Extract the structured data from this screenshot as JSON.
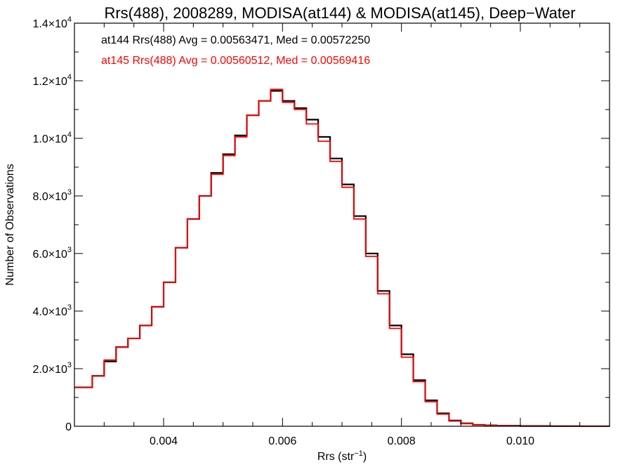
{
  "chart_data": {
    "type": "line",
    "title": "Rrs(488), 2008289, MODISA(at144) & MODISA(at145), Deep−Water",
    "xlabel_base": "Rrs (str",
    "xlabel_exp": "−1",
    "xlabel_close": ")",
    "ylabel": "Number of Observations",
    "xlim": [
      0.0025,
      0.0115
    ],
    "ylim": [
      0,
      14000
    ],
    "x_ticks": [
      {
        "value": 0.004,
        "label": "0.004"
      },
      {
        "value": 0.006,
        "label": "0.006"
      },
      {
        "value": 0.008,
        "label": "0.008"
      },
      {
        "value": 0.01,
        "label": "0.010"
      }
    ],
    "y_ticks": [
      {
        "value": 0,
        "mant": "0",
        "exp": ""
      },
      {
        "value": 2000,
        "mant": "2.0×10",
        "exp": "3"
      },
      {
        "value": 4000,
        "mant": "4.0×10",
        "exp": "3"
      },
      {
        "value": 6000,
        "mant": "6.0×10",
        "exp": "3"
      },
      {
        "value": 8000,
        "mant": "8.0×10",
        "exp": "3"
      },
      {
        "value": 10000,
        "mant": "1.0×10",
        "exp": "4"
      },
      {
        "value": 12000,
        "mant": "1.2×10",
        "exp": "4"
      },
      {
        "value": 14000,
        "mant": "1.4×10",
        "exp": "4"
      }
    ],
    "annotations": [
      {
        "text": "at144 Rrs(488) Avg = 0.00563471, Med = 0.00572250",
        "color": "#000000"
      },
      {
        "text": "at145 Rrs(488) Avg = 0.00560512, Med = 0.00569416",
        "color": "#ff0000"
      }
    ],
    "series": [
      {
        "color": "#000000",
        "step": true,
        "x": [
          0.0025,
          0.0028,
          0.003,
          0.0032,
          0.0034,
          0.0036,
          0.0038,
          0.004,
          0.0042,
          0.0044,
          0.0046,
          0.0048,
          0.005,
          0.0052,
          0.0054,
          0.0056,
          0.0058,
          0.006,
          0.0062,
          0.0064,
          0.0066,
          0.0068,
          0.007,
          0.0072,
          0.0074,
          0.0076,
          0.0078,
          0.008,
          0.0082,
          0.0084,
          0.0086,
          0.0088,
          0.009,
          0.0092,
          0.0094,
          0.0096,
          0.01,
          0.0105,
          0.011,
          0.0115
        ],
        "y": [
          1350,
          1750,
          2250,
          2750,
          3050,
          3500,
          4150,
          5000,
          6200,
          7200,
          8000,
          8800,
          9450,
          10100,
          10800,
          11300,
          11650,
          11300,
          11050,
          10650,
          10050,
          9300,
          8400,
          7300,
          6000,
          4700,
          3500,
          2500,
          1600,
          900,
          450,
          200,
          100,
          50,
          30,
          20,
          10,
          5,
          2,
          0
        ]
      },
      {
        "color": "#ff0000",
        "step": true,
        "x": [
          0.0025,
          0.0028,
          0.003,
          0.0032,
          0.0034,
          0.0036,
          0.0038,
          0.004,
          0.0042,
          0.0044,
          0.0046,
          0.0048,
          0.005,
          0.0052,
          0.0054,
          0.0056,
          0.0058,
          0.006,
          0.0062,
          0.0064,
          0.0066,
          0.0068,
          0.007,
          0.0072,
          0.0074,
          0.0076,
          0.0078,
          0.008,
          0.0082,
          0.0084,
          0.0086,
          0.0088,
          0.009,
          0.0092,
          0.0094,
          0.0096,
          0.01,
          0.0105,
          0.011,
          0.0115
        ],
        "y": [
          1350,
          1750,
          2300,
          2750,
          3050,
          3500,
          4150,
          5000,
          6200,
          7200,
          8000,
          8750,
          9400,
          10050,
          10800,
          11300,
          11700,
          11250,
          11000,
          10500,
          9900,
          9200,
          8300,
          7200,
          5900,
          4600,
          3400,
          2400,
          1550,
          850,
          420,
          180,
          90,
          45,
          25,
          15,
          8,
          4,
          2,
          0
        ]
      }
    ]
  }
}
